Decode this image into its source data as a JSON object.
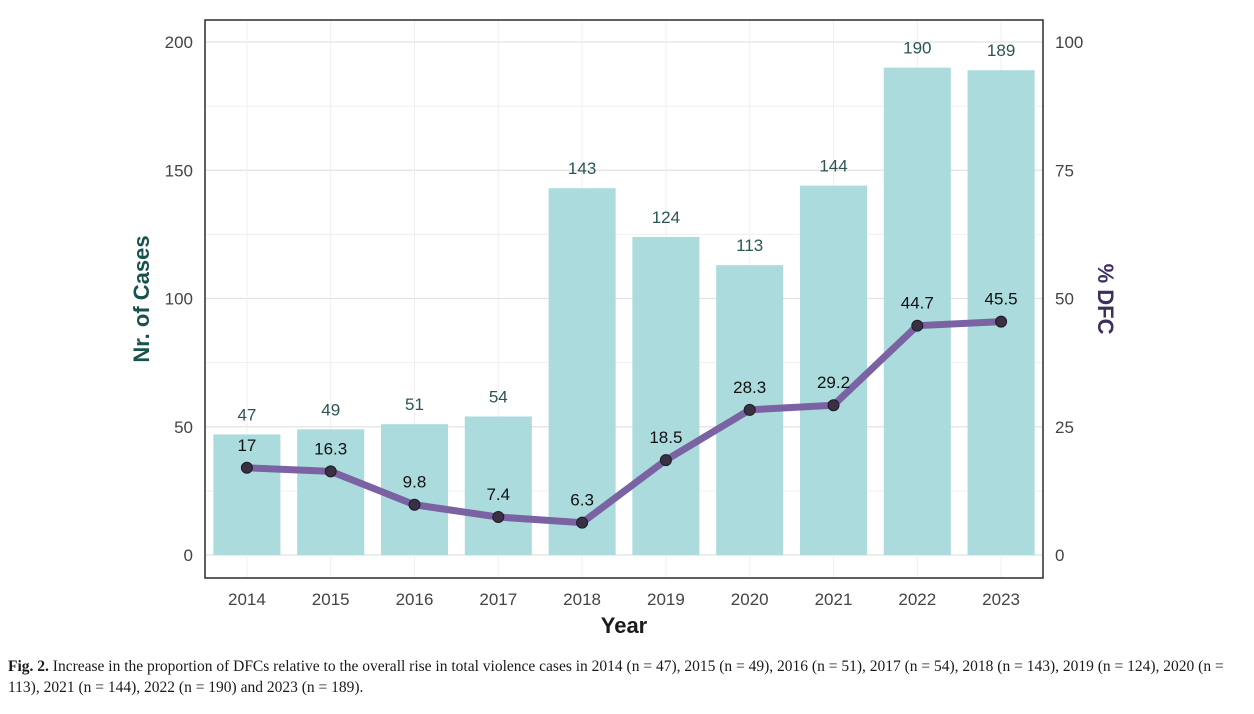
{
  "chart_data": {
    "type": "bar",
    "categories": [
      "2014",
      "2015",
      "2016",
      "2017",
      "2018",
      "2019",
      "2020",
      "2021",
      "2022",
      "2023"
    ],
    "series": [
      {
        "values": [
          47,
          49,
          51,
          54,
          143,
          124,
          113,
          144,
          190,
          189
        ],
        "axis": "left",
        "type": "bar",
        "color": "#abdbdc"
      },
      {
        "values": [
          17,
          16.3,
          9.8,
          7.4,
          6.3,
          18.5,
          28.3,
          29.2,
          44.7,
          45.5
        ],
        "axis": "right",
        "type": "line",
        "color": "#7a62a3"
      }
    ],
    "xlabel": "Year",
    "ylabel": "Nr. of Cases",
    "y2label": "% DFC",
    "ylim": [
      0,
      200
    ],
    "y2lim": [
      0,
      100
    ],
    "yticks": [
      0,
      50,
      100,
      150,
      200
    ],
    "y2ticks": [
      0,
      25,
      50,
      75,
      100
    ],
    "grid": true,
    "colors": {
      "bar": "#abdbdc",
      "line": "#7a62a3",
      "marker": "#3a3044",
      "ylabel": "#17524e",
      "y2label": "#3d2f5c",
      "bar_label": "#2c5554"
    }
  },
  "caption": {
    "label": "Fig. 2.",
    "text": "Increase in the proportion of DFCs relative to the overall rise in total violence cases in 2014 (n = 47), 2015 (n = 49), 2016 (n = 51), 2017 (n = 54), 2018 (n = 143), 2019 (n = 124), 2020 (n = 113), 2021 (n = 144), 2022 (n = 190) and 2023 (n = 189)."
  }
}
